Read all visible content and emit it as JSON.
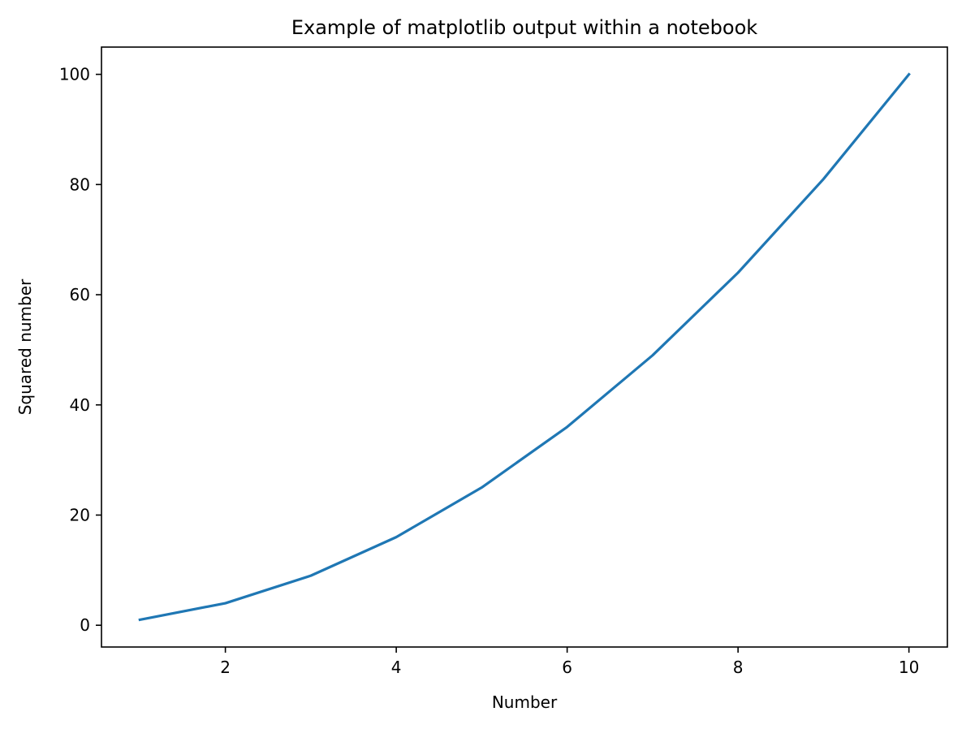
{
  "chart_data": {
    "type": "line",
    "title": "Example of matplotlib output within a notebook",
    "xlabel": "Number",
    "ylabel": "Squared number",
    "x": [
      1,
      2,
      3,
      4,
      5,
      6,
      7,
      8,
      9,
      10
    ],
    "series": [
      {
        "values": [
          1,
          4,
          9,
          16,
          25,
          36,
          49,
          64,
          81,
          100
        ],
        "color": "#1f77b4"
      }
    ],
    "xlim": [
      0.55,
      10.45
    ],
    "ylim": [
      -3.95,
      104.95
    ],
    "xticks": [
      2,
      4,
      6,
      8,
      10
    ],
    "yticks": [
      0,
      20,
      40,
      60,
      80,
      100
    ],
    "grid": false,
    "legend": "none"
  }
}
